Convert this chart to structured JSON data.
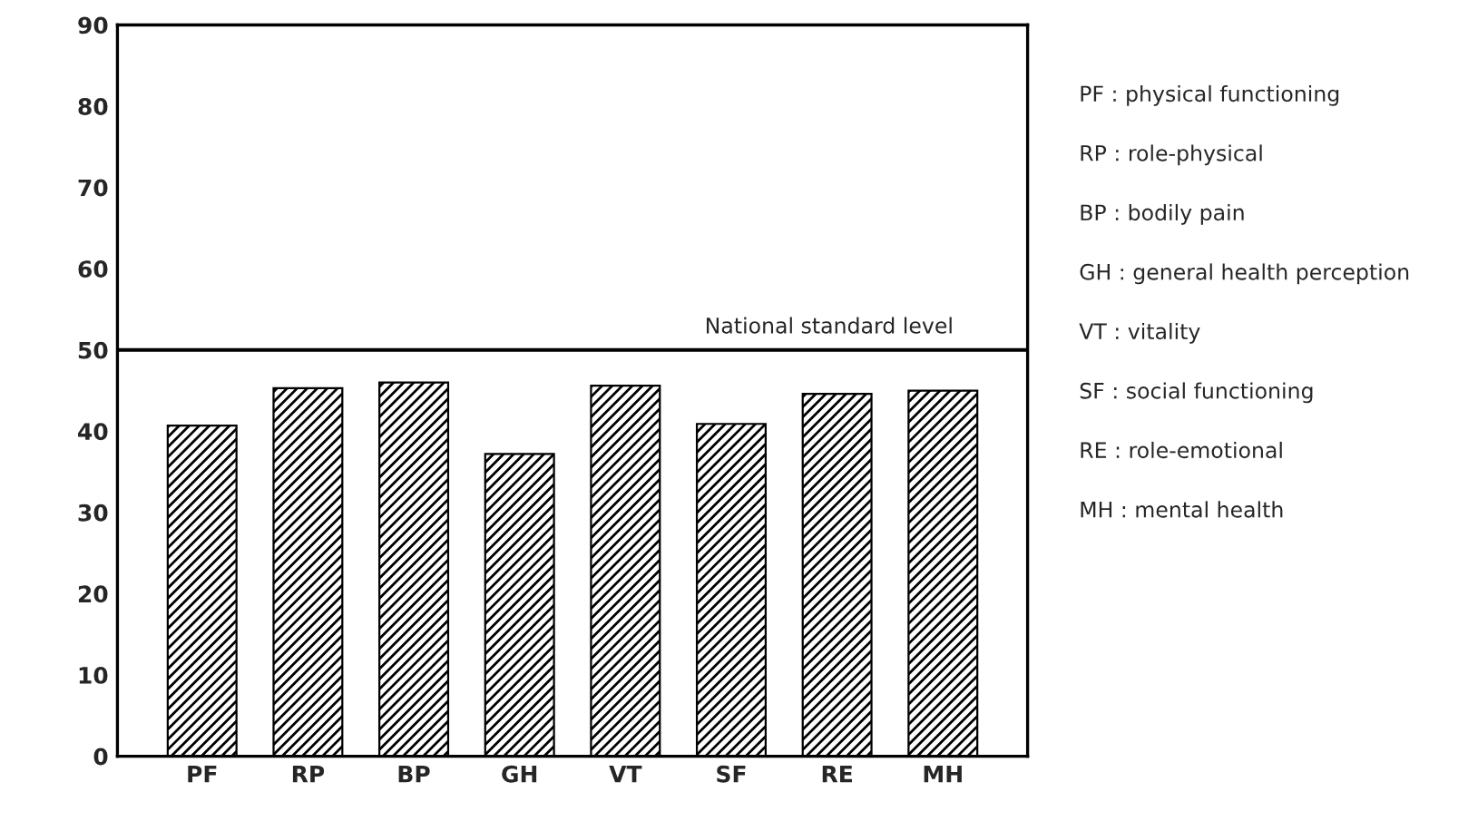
{
  "chart_data": {
    "type": "bar",
    "categories": [
      "PF",
      "RP",
      "BP",
      "GH",
      "VT",
      "SF",
      "RE",
      "MH"
    ],
    "values": [
      40.7,
      45.3,
      46.0,
      37.2,
      45.6,
      40.9,
      44.6,
      45.0
    ],
    "color": "#000000",
    "ylim": [
      0,
      90
    ],
    "yticks": [
      0,
      10,
      20,
      30,
      40,
      50,
      60,
      70,
      80,
      90
    ],
    "ref_lines": [
      {
        "axis": "y",
        "value": 50,
        "label": "National standard level",
        "color": "#000000",
        "line_style": "solid"
      }
    ],
    "annotations": [
      "PF : physical functioning",
      "RP : role-physical",
      "BP : bodily pain",
      "GH : general health perception",
      "VT : vitality",
      "SF : social functioning",
      "RE : role-emotional",
      "MH : mental health"
    ],
    "grid": false,
    "legend": false
  }
}
